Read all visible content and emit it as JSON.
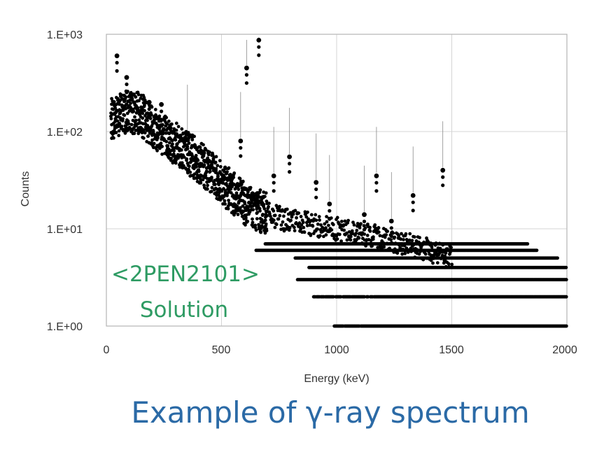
{
  "chart_data": {
    "type": "scatter",
    "xlabel": "Energy (keV)",
    "ylabel": "Counts",
    "x_ticks": [
      "0",
      "500",
      "1000",
      "1500",
      "2000"
    ],
    "y_ticks": [
      "1.E+00",
      "1.E+01",
      "1.E+02",
      "1.E+03"
    ],
    "xlim": [
      0,
      2000
    ],
    "ylim": [
      1,
      1000
    ],
    "y_scale": "log",
    "grid": true,
    "marker_color": "#000000",
    "peaks": [
      {
        "energy": 46,
        "counts": 600
      },
      {
        "energy": 88,
        "counts": 360
      },
      {
        "energy": 186,
        "counts": 200
      },
      {
        "energy": 239,
        "counts": 190
      },
      {
        "energy": 352,
        "counts": 95
      },
      {
        "energy": 583,
        "counts": 80
      },
      {
        "energy": 609,
        "counts": 450
      },
      {
        "energy": 662,
        "counts": 870
      },
      {
        "energy": 727,
        "counts": 35
      },
      {
        "energy": 795,
        "counts": 55
      },
      {
        "energy": 911,
        "counts": 30
      },
      {
        "energy": 969,
        "counts": 18
      },
      {
        "energy": 1120,
        "counts": 14
      },
      {
        "energy": 1173,
        "counts": 35
      },
      {
        "energy": 1238,
        "counts": 12
      },
      {
        "energy": 1332,
        "counts": 22
      },
      {
        "energy": 1461,
        "counts": 40
      }
    ],
    "continuum": [
      {
        "x": 20,
        "y": 130
      },
      {
        "x": 60,
        "y": 155
      },
      {
        "x": 100,
        "y": 160
      },
      {
        "x": 150,
        "y": 150
      },
      {
        "x": 200,
        "y": 115
      },
      {
        "x": 300,
        "y": 75
      },
      {
        "x": 400,
        "y": 50
      },
      {
        "x": 500,
        "y": 30
      },
      {
        "x": 600,
        "y": 18
      },
      {
        "x": 700,
        "y": 14
      },
      {
        "x": 800,
        "y": 12
      },
      {
        "x": 900,
        "y": 11
      },
      {
        "x": 1000,
        "y": 10
      },
      {
        "x": 1100,
        "y": 9
      },
      {
        "x": 1200,
        "y": 8
      },
      {
        "x": 1300,
        "y": 7
      },
      {
        "x": 1400,
        "y": 6
      },
      {
        "x": 1500,
        "y": 5
      },
      {
        "x": 1600,
        "y": 4
      },
      {
        "x": 1800,
        "y": 3
      },
      {
        "x": 2000,
        "y": 2
      }
    ],
    "count_bands": [
      {
        "counts": 7,
        "x_from": 690,
        "x_to": 1830
      },
      {
        "counts": 6,
        "x_from": 650,
        "x_to": 1870
      },
      {
        "counts": 5,
        "x_from": 820,
        "x_to": 1960
      },
      {
        "counts": 4,
        "x_from": 880,
        "x_to": 2000
      },
      {
        "counts": 3,
        "x_from": 830,
        "x_to": 2000
      },
      {
        "counts": 2,
        "x_from": 900,
        "x_to": 2000
      },
      {
        "counts": 1,
        "x_from": 990,
        "x_to": 2000
      }
    ]
  },
  "overlay": {
    "code": "<2PEN2101>",
    "label": "Solution",
    "color": "#2e9b63"
  },
  "caption": {
    "text": "Example of γ-ray spectrum",
    "color": "#2b6aa6"
  }
}
